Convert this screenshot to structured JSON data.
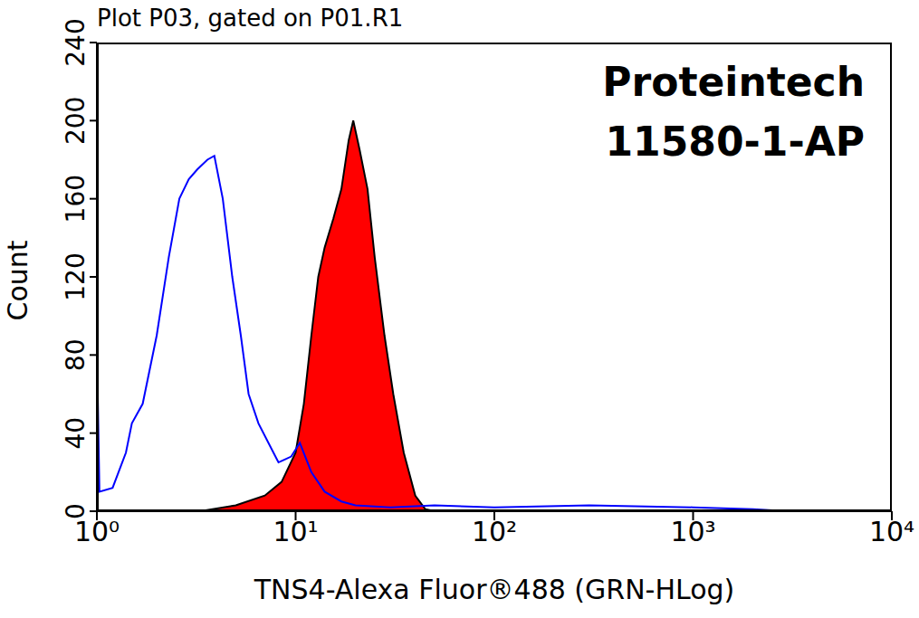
{
  "chart_data": {
    "type": "line",
    "title": "Plot P03, gated on P01.R1",
    "xlabel": "TNS4-Alexa Fluor®488 (GRN-HLog)",
    "ylabel": "Count",
    "annotations": [
      "Proteintech",
      "11580-1-AP"
    ],
    "log": "x",
    "xlim": [
      1,
      10000
    ],
    "xticks": [
      {
        "value": 1,
        "label": "10⁰"
      },
      {
        "value": 10,
        "label": "10¹"
      },
      {
        "value": 100,
        "label": "10²"
      },
      {
        "value": 1000,
        "label": "10³"
      },
      {
        "value": 10000,
        "label": "10⁴"
      }
    ],
    "ylim": [
      0,
      240
    ],
    "yticks": [
      0,
      40,
      80,
      120,
      160,
      200,
      240
    ],
    "series": [
      {
        "type": "line",
        "color": "#0000ff",
        "x": [
          1.0,
          1.01,
          1.03,
          1.2,
          1.4,
          1.5,
          1.7,
          2.0,
          2.3,
          2.6,
          2.9,
          3.2,
          3.6,
          3.9,
          4.3,
          4.8,
          5.3,
          5.8,
          6.5,
          7.3,
          8.2,
          9.5,
          10.5,
          12,
          14,
          17,
          20,
          30,
          50,
          100,
          300,
          1000,
          2000,
          3000
        ],
        "values": [
          140,
          60,
          10,
          12,
          30,
          45,
          55,
          90,
          130,
          160,
          170,
          175,
          180,
          182,
          160,
          120,
          90,
          60,
          45,
          35,
          25,
          28,
          35,
          20,
          10,
          5,
          3,
          2,
          3,
          2,
          3,
          2,
          1,
          0
        ]
      },
      {
        "type": "area",
        "color": "#ff0000",
        "x": [
          3.3,
          5,
          7,
          8.5,
          10,
          11,
          12,
          13,
          14,
          15.5,
          17,
          18.5,
          19.5,
          21,
          23,
          25,
          28,
          31,
          35,
          40,
          45,
          50
        ],
        "values": [
          0,
          3,
          8,
          15,
          30,
          55,
          90,
          120,
          135,
          150,
          165,
          190,
          200,
          185,
          165,
          130,
          90,
          60,
          30,
          8,
          1,
          0
        ]
      }
    ]
  }
}
